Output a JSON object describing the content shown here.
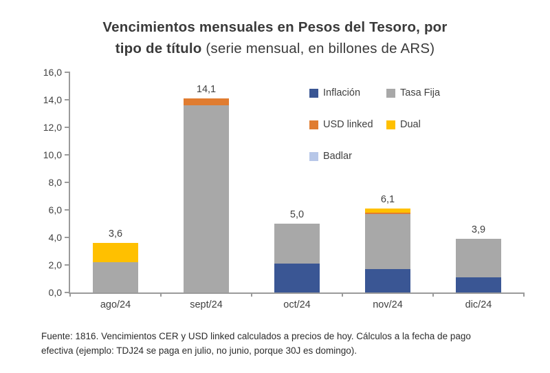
{
  "title": {
    "line1": "Vencimientos mensuales en Pesos del Tesoro, por",
    "line2_bold": "tipo de título",
    "line2_normal": "(serie mensual, en billones de ARS)"
  },
  "chart_data": {
    "type": "bar",
    "stacked": true,
    "title": "Vencimientos mensuales en Pesos del Tesoro, por tipo de título (serie mensual, en billones de ARS)",
    "categories": [
      "ago/24",
      "sept/24",
      "oct/24",
      "nov/24",
      "dic/24"
    ],
    "series": [
      {
        "name": "Inflación",
        "color": "#3a5694",
        "values": [
          0,
          0,
          2.1,
          1.7,
          1.1
        ]
      },
      {
        "name": "Tasa Fija",
        "color": "#a8a8a8",
        "values": [
          2.2,
          13.6,
          2.9,
          4.0,
          2.8
        ]
      },
      {
        "name": "USD linked",
        "color": "#e07c30",
        "values": [
          0,
          0.5,
          0,
          0.1,
          0
        ]
      },
      {
        "name": "Dual",
        "color": "#ffc000",
        "values": [
          1.4,
          0,
          0,
          0.3,
          0
        ]
      },
      {
        "name": "Badlar",
        "color": "#b7c7e8",
        "values": [
          0,
          0,
          0,
          0,
          0
        ]
      }
    ],
    "totals": [
      "3,6",
      "14,1",
      "5,0",
      "6,1",
      "3,9"
    ],
    "ylim": [
      0,
      16
    ],
    "ytick_step": 2,
    "yticks": [
      "0,0",
      "2,0",
      "4,0",
      "6,0",
      "8,0",
      "10,0",
      "12,0",
      "14,0",
      "16,0"
    ],
    "legend_position": "inside-top-right",
    "grid": false
  },
  "footer": {
    "line1": "Fuente: 1816. Vencimientos CER y USD linked calculados a precios de hoy. Cálculos a la fecha de pago",
    "line2": "efectiva (ejemplo: TDJ24 se paga en julio, no junio, porque 30J es domingo)."
  }
}
